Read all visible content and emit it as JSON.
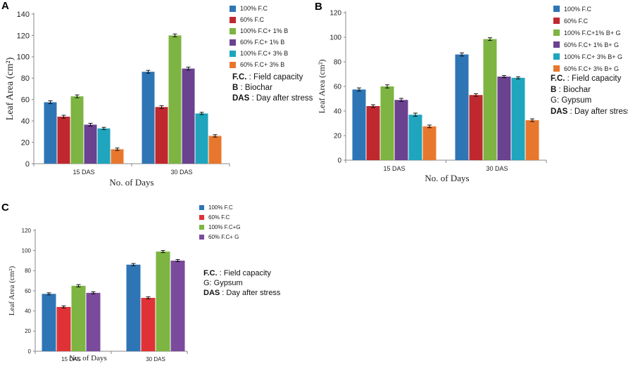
{
  "chart_data": [
    {
      "type": "bar",
      "panel_label": "A",
      "categories": [
        "15 DAS",
        "30 DAS"
      ],
      "series": [
        {
          "name": "100% F.C",
          "color": "#2E75B6",
          "values": [
            57.5,
            86
          ],
          "error": [
            1,
            1
          ]
        },
        {
          "name": "60% F.C",
          "color": "#C0282F",
          "values": [
            44,
            53
          ],
          "error": [
            1,
            1
          ]
        },
        {
          "name": "100% F.C+ 1% B",
          "color": "#7DB442",
          "values": [
            63,
            120
          ],
          "error": [
            1,
            1
          ]
        },
        {
          "name": "60% F.C+ 1% B",
          "color": "#6A4290",
          "values": [
            36.5,
            89
          ],
          "error": [
            1,
            1
          ]
        },
        {
          "name": "100% F.C+ 3% B",
          "color": "#1FA5BD",
          "values": [
            33,
            47
          ],
          "error": [
            0.7,
            0.7
          ]
        },
        {
          "name": "60% F.C+ 3% B",
          "color": "#E8772E",
          "values": [
            13.5,
            26
          ],
          "error": [
            0.8,
            0.8
          ]
        }
      ],
      "xlabel": "No. of Days",
      "ylabel": "Leaf Area (cm²)",
      "ylim": [
        0,
        140
      ],
      "yticks": [
        "0",
        "20",
        "40",
        "60",
        "80",
        "100",
        "120",
        "140"
      ],
      "legend": "right",
      "notes": [
        {
          "key": "F.C.",
          "text": ": Field capacity"
        },
        {
          "key": "B",
          "text": ": Biochar"
        },
        {
          "key": "DAS",
          "text": ": Day after stress"
        }
      ]
    },
    {
      "type": "bar",
      "panel_label": "B",
      "categories": [
        "15 DAS",
        "30 DAS"
      ],
      "series": [
        {
          "name": "100% F.C",
          "color": "#2E75B6",
          "values": [
            57.5,
            86
          ],
          "error": [
            1,
            1
          ]
        },
        {
          "name": "60% F.C",
          "color": "#C0282F",
          "values": [
            44,
            53
          ],
          "error": [
            0.8,
            0.8
          ]
        },
        {
          "name": "100% F.C+1% B+ G",
          "color": "#7DB442",
          "values": [
            60,
            98.5
          ],
          "error": [
            1,
            0.8
          ]
        },
        {
          "name": "60% F.C+ 1% B+ G",
          "color": "#6A4290",
          "values": [
            49,
            68
          ],
          "error": [
            1,
            0.6
          ]
        },
        {
          "name": "100% F.C+ 3% B+ G",
          "color": "#1FA5BD",
          "values": [
            37,
            67
          ],
          "error": [
            1,
            0.6
          ]
        },
        {
          "name": "60% F.C+ 3% B+ G",
          "color": "#E8772E",
          "values": [
            27.5,
            32.5
          ],
          "error": [
            0.8,
            0.8
          ]
        }
      ],
      "xlabel": "No. of Days",
      "ylabel": "Leaf Area (cm²)",
      "ylim": [
        0,
        120
      ],
      "yticks": [
        "0",
        "20",
        "40",
        "60",
        "80",
        "100",
        "120"
      ],
      "legend": "right",
      "notes": [
        {
          "key": "F.C.",
          "text": ": Field capacity"
        },
        {
          "key": "B",
          "text": ": Biochar"
        },
        {
          "key": "",
          "text": "G: Gypsum"
        },
        {
          "key": "DAS",
          "text": ": Day after stress"
        }
      ]
    },
    {
      "type": "bar",
      "panel_label": "C",
      "categories": [
        "15 DAS",
        "30 DAS"
      ],
      "series": [
        {
          "name": "100% F.C",
          "color": "#2E75B6",
          "values": [
            57,
            86
          ],
          "error": [
            0.7,
            0.8
          ]
        },
        {
          "name": "60% F.C",
          "color": "#E03236",
          "values": [
            44,
            53
          ],
          "error": [
            0.7,
            0.7
          ]
        },
        {
          "name": "100% F.C+G",
          "color": "#7DB442",
          "values": [
            65,
            99
          ],
          "error": [
            0.8,
            0.7
          ]
        },
        {
          "name": "60% F.C+ G",
          "color": "#7A4A9C",
          "values": [
            58,
            90
          ],
          "error": [
            0.7,
            0.7
          ]
        }
      ],
      "xlabel": "No. of Days",
      "ylabel": "Leaf Area (cm²)",
      "ylim": [
        0,
        120
      ],
      "yticks": [
        "0",
        "20",
        "40",
        "60",
        "80",
        "100",
        "120"
      ],
      "legend": "right",
      "notes": [
        {
          "key": "F.C.",
          "text": ": Field capacity"
        },
        {
          "key": "",
          "text": "G: Gypsum"
        },
        {
          "key": "DAS",
          "text": ": Day after stress"
        }
      ]
    }
  ]
}
